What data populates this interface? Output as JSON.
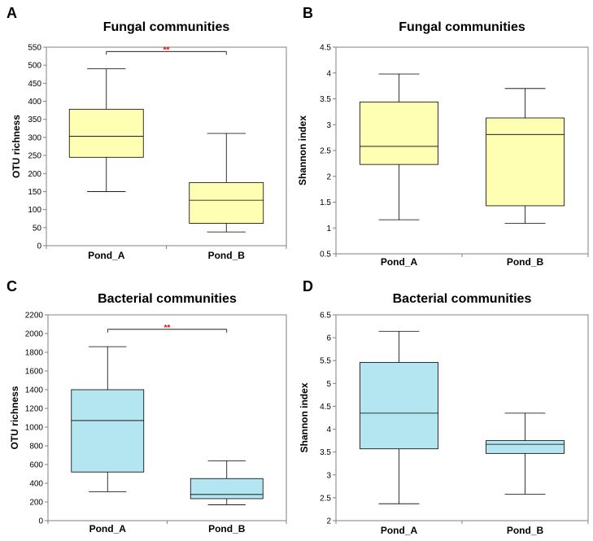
{
  "chart_data": [
    {
      "panel": "A",
      "type": "box",
      "title": "Fungal communities",
      "ylabel": "OTU richness",
      "xlabel": "",
      "ylim": [
        0,
        550
      ],
      "yticks": [
        0,
        50,
        100,
        150,
        200,
        250,
        300,
        350,
        400,
        450,
        500,
        550
      ],
      "categories": [
        "Pond_A",
        "Pond_B"
      ],
      "fill": "#ffffb3",
      "boxes": [
        {
          "category": "Pond_A",
          "min": 150,
          "q1": 245,
          "median": 303,
          "q3": 378,
          "max": 490
        },
        {
          "category": "Pond_B",
          "min": 38,
          "q1": 62,
          "median": 126,
          "q3": 175,
          "max": 311
        }
      ],
      "significance": {
        "label": "**",
        "color": "#ff0000",
        "level": 538
      }
    },
    {
      "panel": "B",
      "type": "box",
      "title": "Fungal communities",
      "ylabel": "Shannon index",
      "xlabel": "",
      "ylim": [
        0.5,
        4.5
      ],
      "yticks": [
        "0.5",
        "1",
        "1.5",
        "2",
        "2.5",
        "3",
        "3.5",
        "4",
        "4.5"
      ],
      "categories": [
        "Pond_A",
        "Pond_B"
      ],
      "fill": "#ffffb3",
      "boxes": [
        {
          "category": "Pond_A",
          "min": 1.16,
          "q1": 2.23,
          "median": 2.58,
          "q3": 3.44,
          "max": 3.98
        },
        {
          "category": "Pond_B",
          "min": 1.09,
          "q1": 1.43,
          "median": 2.81,
          "q3": 3.13,
          "max": 3.7
        }
      ]
    },
    {
      "panel": "C",
      "type": "box",
      "title": "Bacterial communities",
      "ylabel": "OTU richness",
      "xlabel": "",
      "ylim": [
        0,
        2200
      ],
      "yticks": [
        0,
        200,
        400,
        600,
        800,
        1000,
        1200,
        1400,
        1600,
        1800,
        2000,
        2200
      ],
      "categories": [
        "Pond_A",
        "Pond_B"
      ],
      "fill": "#b3e6f0",
      "boxes": [
        {
          "category": "Pond_A",
          "min": 310,
          "q1": 520,
          "median": 1070,
          "q3": 1400,
          "max": 1860
        },
        {
          "category": "Pond_B",
          "min": 170,
          "q1": 235,
          "median": 280,
          "q3": 450,
          "max": 640
        }
      ],
      "significance": {
        "label": "**",
        "color": "#ff0000",
        "level": 2045
      }
    },
    {
      "panel": "D",
      "type": "box",
      "title": "Bacterial communities",
      "ylabel": "Shannon index",
      "xlabel": "",
      "ylim": [
        2,
        6.5
      ],
      "yticks": [
        "2",
        "2.5",
        "3",
        "3.5",
        "4",
        "4.5",
        "5",
        "5.5",
        "6",
        "6.5"
      ],
      "categories": [
        "Pond_A",
        "Pond_B"
      ],
      "fill": "#b3e6f0",
      "boxes": [
        {
          "category": "Pond_A",
          "min": 2.37,
          "q1": 3.57,
          "median": 4.35,
          "q3": 5.46,
          "max": 6.14
        },
        {
          "category": "Pond_B",
          "min": 2.58,
          "q1": 3.47,
          "median": 3.67,
          "q3": 3.75,
          "max": 4.35
        }
      ]
    }
  ]
}
